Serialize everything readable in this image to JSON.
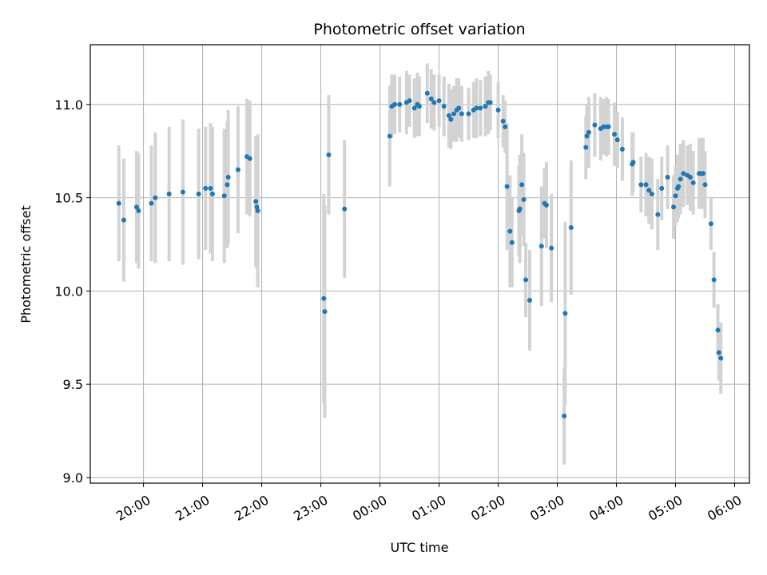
{
  "chart_data": {
    "type": "scatter",
    "title": "Photometric offset variation",
    "xlabel": "UTC time",
    "ylabel": "Photometric offset",
    "x_ticks": [
      "20:00",
      "21:00",
      "22:00",
      "23:00",
      "00:00",
      "01:00",
      "02:00",
      "03:00",
      "04:00",
      "05:00",
      "06:00"
    ],
    "x_tick_hours": [
      20,
      21,
      22,
      23,
      24,
      25,
      26,
      27,
      28,
      29,
      30
    ],
    "xlim_hours": [
      19.1,
      30.25
    ],
    "ylim": [
      8.97,
      11.32
    ],
    "y_ticks": [
      9.0,
      9.5,
      10.0,
      10.5,
      11.0
    ],
    "y_tick_labels": [
      "9.0",
      "9.5",
      "10.0",
      "10.5",
      "11.0"
    ],
    "grid": true,
    "colors": {
      "marker": "#1f77b4",
      "errorbar": "#d3d3d3",
      "grid": "#b0b0b0",
      "axes": "#000000"
    },
    "series": [
      {
        "points": [
          {
            "t": "19:35",
            "y": 10.47,
            "err": 0.31
          },
          {
            "t": "19:40",
            "y": 10.38,
            "err": 0.33
          },
          {
            "t": "19:53",
            "y": 10.45,
            "err": 0.3
          },
          {
            "t": "19:55",
            "y": 10.43,
            "err": 0.31
          },
          {
            "t": "20:08",
            "y": 10.47,
            "err": 0.31
          },
          {
            "t": "20:12",
            "y": 10.5,
            "err": 0.35
          },
          {
            "t": "20:26",
            "y": 10.52,
            "err": 0.36
          },
          {
            "t": "20:40",
            "y": 10.53,
            "err": 0.39
          },
          {
            "t": "20:56",
            "y": 10.52,
            "err": 0.35
          },
          {
            "t": "21:03",
            "y": 10.55,
            "err": 0.33
          },
          {
            "t": "21:08",
            "y": 10.55,
            "err": 0.35
          },
          {
            "t": "21:10",
            "y": 10.52,
            "err": 0.36
          },
          {
            "t": "21:22",
            "y": 10.51,
            "err": 0.36
          },
          {
            "t": "21:25",
            "y": 10.57,
            "err": 0.34
          },
          {
            "t": "21:26",
            "y": 10.61,
            "err": 0.36
          },
          {
            "t": "21:36",
            "y": 10.65,
            "err": 0.34
          },
          {
            "t": "21:45",
            "y": 10.72,
            "err": 0.31
          },
          {
            "t": "21:48",
            "y": 10.71,
            "err": 0.31
          },
          {
            "t": "21:54",
            "y": 10.48,
            "err": 0.35
          },
          {
            "t": "21:55",
            "y": 10.45,
            "err": 0.33
          },
          {
            "t": "21:56",
            "y": 10.43,
            "err": 0.41
          },
          {
            "t": "23:03",
            "y": 9.96,
            "err": 0.56
          },
          {
            "t": "23:04",
            "y": 9.89,
            "err": 0.57
          },
          {
            "t": "23:08",
            "y": 10.73,
            "err": 0.32
          },
          {
            "t": "23:24",
            "y": 10.44,
            "err": 0.37
          },
          {
            "t": "00:10",
            "y": 10.83,
            "err": 0.27
          },
          {
            "t": "00:12",
            "y": 10.99,
            "err": 0.17
          },
          {
            "t": "00:15",
            "y": 11.0,
            "err": 0.16
          },
          {
            "t": "00:20",
            "y": 11.0,
            "err": 0.15
          },
          {
            "t": "00:27",
            "y": 11.01,
            "err": 0.17
          },
          {
            "t": "00:30",
            "y": 11.02,
            "err": 0.14
          },
          {
            "t": "00:35",
            "y": 10.98,
            "err": 0.16
          },
          {
            "t": "00:38",
            "y": 11.0,
            "err": 0.17
          },
          {
            "t": "00:40",
            "y": 10.99,
            "err": 0.16
          },
          {
            "t": "00:48",
            "y": 11.06,
            "err": 0.16
          },
          {
            "t": "00:52",
            "y": 11.03,
            "err": 0.16
          },
          {
            "t": "00:55",
            "y": 11.01,
            "err": 0.15
          },
          {
            "t": "01:00",
            "y": 11.02,
            "err": 0.14
          },
          {
            "t": "01:05",
            "y": 10.99,
            "err": 0.16
          },
          {
            "t": "01:10",
            "y": 10.94,
            "err": 0.17
          },
          {
            "t": "01:12",
            "y": 10.92,
            "err": 0.16
          },
          {
            "t": "01:15",
            "y": 10.95,
            "err": 0.15
          },
          {
            "t": "01:18",
            "y": 10.97,
            "err": 0.17
          },
          {
            "t": "01:20",
            "y": 10.98,
            "err": 0.16
          },
          {
            "t": "01:23",
            "y": 10.95,
            "err": 0.15
          },
          {
            "t": "01:30",
            "y": 10.95,
            "err": 0.14
          },
          {
            "t": "01:35",
            "y": 10.97,
            "err": 0.15
          },
          {
            "t": "01:38",
            "y": 10.98,
            "err": 0.16
          },
          {
            "t": "01:42",
            "y": 10.98,
            "err": 0.15
          },
          {
            "t": "01:47",
            "y": 10.99,
            "err": 0.16
          },
          {
            "t": "01:50",
            "y": 11.01,
            "err": 0.17
          },
          {
            "t": "01:52",
            "y": 11.01,
            "err": 0.15
          },
          {
            "t": "02:00",
            "y": 10.97,
            "err": 0.15
          },
          {
            "t": "02:05",
            "y": 10.91,
            "err": 0.14
          },
          {
            "t": "02:07",
            "y": 10.88,
            "err": 0.14
          },
          {
            "t": "02:09",
            "y": 10.56,
            "err": 0.34
          },
          {
            "t": "02:12",
            "y": 10.32,
            "err": 0.3
          },
          {
            "t": "02:14",
            "y": 10.26,
            "err": 0.24
          },
          {
            "t": "02:21",
            "y": 10.43,
            "err": 0.24
          },
          {
            "t": "02:22",
            "y": 10.44,
            "err": 0.29
          },
          {
            "t": "02:24",
            "y": 10.57,
            "err": 0.27
          },
          {
            "t": "02:26",
            "y": 10.49,
            "err": 0.25
          },
          {
            "t": "02:28",
            "y": 10.06,
            "err": 0.2
          },
          {
            "t": "02:32",
            "y": 9.95,
            "err": 0.27
          },
          {
            "t": "02:44",
            "y": 10.24,
            "err": 0.32
          },
          {
            "t": "02:47",
            "y": 10.47,
            "err": 0.19
          },
          {
            "t": "02:49",
            "y": 10.46,
            "err": 0.23
          },
          {
            "t": "02:54",
            "y": 10.23,
            "err": 0.29
          },
          {
            "t": "03:07",
            "y": 9.33,
            "err": 0.26
          },
          {
            "t": "03:08",
            "y": 9.88,
            "err": 0.49
          },
          {
            "t": "03:14",
            "y": 10.34,
            "err": 0.36
          },
          {
            "t": "03:29",
            "y": 10.77,
            "err": 0.17
          },
          {
            "t": "03:30",
            "y": 10.83,
            "err": 0.17
          },
          {
            "t": "03:32",
            "y": 10.85,
            "err": 0.19
          },
          {
            "t": "03:38",
            "y": 10.89,
            "err": 0.17
          },
          {
            "t": "03:44",
            "y": 10.87,
            "err": 0.17
          },
          {
            "t": "03:47",
            "y": 10.88,
            "err": 0.15
          },
          {
            "t": "03:50",
            "y": 10.88,
            "err": 0.16
          },
          {
            "t": "03:52",
            "y": 10.88,
            "err": 0.15
          },
          {
            "t": "03:58",
            "y": 10.84,
            "err": 0.17
          },
          {
            "t": "04:01",
            "y": 10.81,
            "err": 0.15
          },
          {
            "t": "04:06",
            "y": 10.76,
            "err": 0.17
          },
          {
            "t": "04:16",
            "y": 10.68,
            "err": 0.17
          },
          {
            "t": "04:17",
            "y": 10.69,
            "err": 0.16
          },
          {
            "t": "04:25",
            "y": 10.57,
            "err": 0.15
          },
          {
            "t": "04:30",
            "y": 10.57,
            "err": 0.17
          },
          {
            "t": "04:33",
            "y": 10.54,
            "err": 0.18
          },
          {
            "t": "04:36",
            "y": 10.52,
            "err": 0.19
          },
          {
            "t": "04:42",
            "y": 10.41,
            "err": 0.19
          },
          {
            "t": "04:46",
            "y": 10.55,
            "err": 0.17
          },
          {
            "t": "04:52",
            "y": 10.61,
            "err": 0.17
          },
          {
            "t": "04:58",
            "y": 10.45,
            "err": 0.17
          },
          {
            "t": "05:00",
            "y": 10.51,
            "err": 0.16
          },
          {
            "t": "05:02",
            "y": 10.55,
            "err": 0.18
          },
          {
            "t": "05:03",
            "y": 10.56,
            "err": 0.17
          },
          {
            "t": "05:05",
            "y": 10.6,
            "err": 0.19
          },
          {
            "t": "05:08",
            "y": 10.63,
            "err": 0.18
          },
          {
            "t": "05:12",
            "y": 10.62,
            "err": 0.16
          },
          {
            "t": "05:15",
            "y": 10.61,
            "err": 0.18
          },
          {
            "t": "05:18",
            "y": 10.58,
            "err": 0.17
          },
          {
            "t": "05:24",
            "y": 10.63,
            "err": 0.19
          },
          {
            "t": "05:26",
            "y": 10.63,
            "err": 0.19
          },
          {
            "t": "05:28",
            "y": 10.63,
            "err": 0.19
          },
          {
            "t": "05:30",
            "y": 10.57,
            "err": 0.18
          },
          {
            "t": "05:36",
            "y": 10.36,
            "err": 0.14
          },
          {
            "t": "05:39",
            "y": 10.06,
            "err": 0.15
          },
          {
            "t": "05:43",
            "y": 9.79,
            "err": 0.14
          },
          {
            "t": "05:44",
            "y": 9.67,
            "err": 0.15
          },
          {
            "t": "05:46",
            "y": 9.64,
            "err": 0.19
          }
        ]
      }
    ]
  }
}
